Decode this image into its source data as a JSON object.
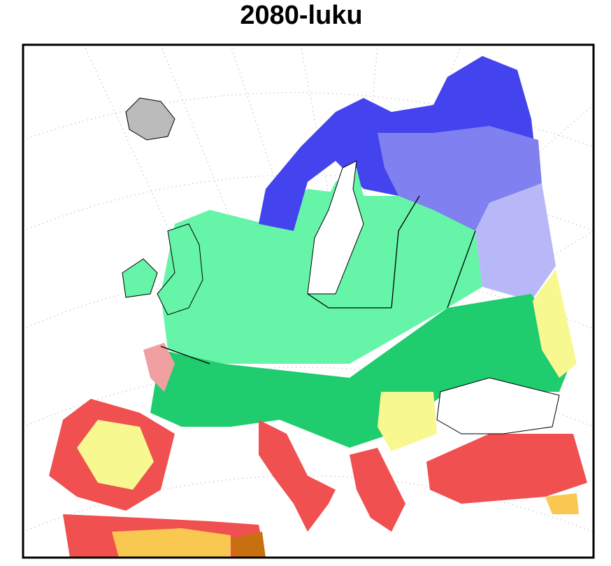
{
  "title": "2080-luku"
}
